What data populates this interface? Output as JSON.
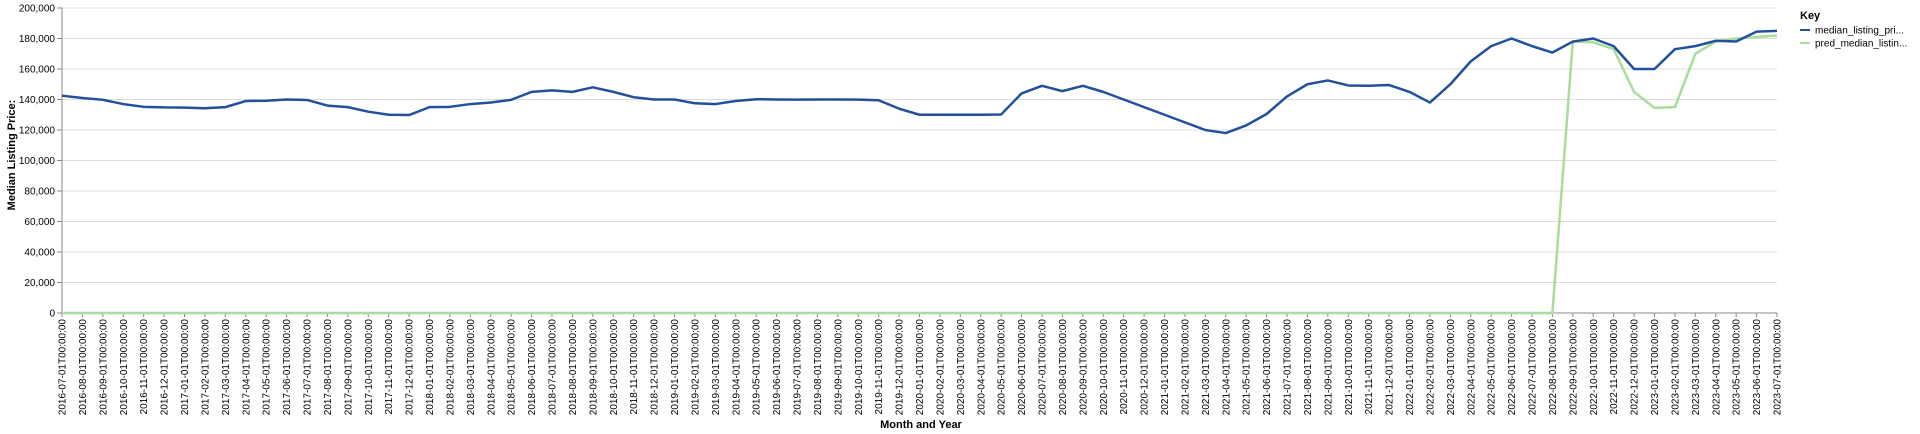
{
  "chart_data": {
    "type": "line",
    "xlabel": "Month and Year",
    "ylabel": "Median Listing Price:",
    "ylim": [
      0,
      200000
    ],
    "y_ticks": [
      "0",
      "20,000",
      "40,000",
      "60,000",
      "80,000",
      "100,000",
      "120,000",
      "140,000",
      "160,000",
      "180,000",
      "200,000"
    ],
    "y_tick_values": [
      0,
      20000,
      40000,
      60000,
      80000,
      100000,
      120000,
      140000,
      160000,
      180000,
      200000
    ],
    "grid": true,
    "legend": {
      "title": "Key",
      "placement": "right"
    },
    "x": [
      "2016-07-01T00:00:00",
      "2016-08-01T00:00:00",
      "2016-09-01T00:00:00",
      "2016-10-01T00:00:00",
      "2016-11-01T00:00:00",
      "2016-12-01T00:00:00",
      "2017-01-01T00:00:00",
      "2017-02-01T00:00:00",
      "2017-03-01T00:00:00",
      "2017-04-01T00:00:00",
      "2017-05-01T00:00:00",
      "2017-06-01T00:00:00",
      "2017-07-01T00:00:00",
      "2017-08-01T00:00:00",
      "2017-09-01T00:00:00",
      "2017-10-01T00:00:00",
      "2017-11-01T00:00:00",
      "2017-12-01T00:00:00",
      "2018-01-01T00:00:00",
      "2018-02-01T00:00:00",
      "2018-03-01T00:00:00",
      "2018-04-01T00:00:00",
      "2018-05-01T00:00:00",
      "2018-06-01T00:00:00",
      "2018-07-01T00:00:00",
      "2018-08-01T00:00:00",
      "2018-09-01T00:00:00",
      "2018-10-01T00:00:00",
      "2018-11-01T00:00:00",
      "2018-12-01T00:00:00",
      "2019-01-01T00:00:00",
      "2019-02-01T00:00:00",
      "2019-03-01T00:00:00",
      "2019-04-01T00:00:00",
      "2019-05-01T00:00:00",
      "2019-06-01T00:00:00",
      "2019-07-01T00:00:00",
      "2019-08-01T00:00:00",
      "2019-09-01T00:00:00",
      "2019-10-01T00:00:00",
      "2019-11-01T00:00:00",
      "2019-12-01T00:00:00",
      "2020-01-01T00:00:00",
      "2020-02-01T00:00:00",
      "2020-03-01T00:00:00",
      "2020-04-01T00:00:00",
      "2020-05-01T00:00:00",
      "2020-06-01T00:00:00",
      "2020-07-01T00:00:00",
      "2020-08-01T00:00:00",
      "2020-09-01T00:00:00",
      "2020-10-01T00:00:00",
      "2020-11-01T00:00:00",
      "2020-12-01T00:00:00",
      "2021-01-01T00:00:00",
      "2021-02-01T00:00:00",
      "2021-03-01T00:00:00",
      "2021-04-01T00:00:00",
      "2021-05-01T00:00:00",
      "2021-06-01T00:00:00",
      "2021-07-01T00:00:00",
      "2021-08-01T00:00:00",
      "2021-09-01T00:00:00",
      "2021-10-01T00:00:00",
      "2021-11-01T00:00:00",
      "2021-12-01T00:00:00",
      "2022-01-01T00:00:00",
      "2022-02-01T00:00:00",
      "2022-03-01T00:00:00",
      "2022-04-01T00:00:00",
      "2022-05-01T00:00:00",
      "2022-06-01T00:00:00",
      "2022-07-01T00:00:00",
      "2022-08-01T00:00:00",
      "2022-09-01T00:00:00",
      "2022-10-01T00:00:00",
      "2022-11-01T00:00:00",
      "2022-12-01T00:00:00",
      "2023-01-01T00:00:00",
      "2023-02-01T00:00:00",
      "2023-03-01T00:00:00",
      "2023-04-01T00:00:00",
      "2023-05-01T00:00:00",
      "2023-06-01T00:00:00",
      "2023-07-01T00:00:00"
    ],
    "series": [
      {
        "name": "median_listing_pri...",
        "color": "#23509b",
        "values": [
          142500,
          141000,
          139800,
          137000,
          135200,
          134800,
          134700,
          134300,
          135000,
          139000,
          139200,
          140000,
          139700,
          136000,
          135000,
          132000,
          130000,
          129800,
          135000,
          135200,
          137000,
          138000,
          139800,
          145000,
          146000,
          145000,
          148000,
          145000,
          141500,
          140000,
          140000,
          137500,
          137000,
          139000,
          140200,
          140000,
          139900,
          140000,
          140000,
          139900,
          139500,
          134000,
          130000,
          130000,
          130000,
          130000,
          130200,
          144000,
          149000,
          145500,
          149000,
          145000,
          140000,
          135000,
          130000,
          125000,
          120000,
          118000,
          123000,
          130500,
          142000,
          150000,
          152500,
          149200,
          149000,
          149500,
          145000,
          138000,
          150000,
          165000,
          175000,
          180000,
          175000,
          170800,
          178000,
          180000,
          175000,
          160000,
          160000,
          173000,
          175000,
          178500,
          178000,
          184500,
          185000
        ]
      },
      {
        "name": "pred_median_listin...",
        "color": "#a8dd9b",
        "values": [
          0,
          0,
          0,
          0,
          0,
          0,
          0,
          0,
          0,
          0,
          0,
          0,
          0,
          0,
          0,
          0,
          0,
          0,
          0,
          0,
          0,
          0,
          0,
          0,
          0,
          0,
          0,
          0,
          0,
          0,
          0,
          0,
          0,
          0,
          0,
          0,
          0,
          0,
          0,
          0,
          0,
          0,
          0,
          0,
          0,
          0,
          0,
          0,
          0,
          0,
          0,
          0,
          0,
          0,
          0,
          0,
          0,
          0,
          0,
          0,
          0,
          0,
          0,
          0,
          0,
          0,
          0,
          0,
          0,
          0,
          0,
          0,
          0,
          0,
          178000,
          177500,
          173000,
          145000,
          134500,
          135000,
          170000,
          178000,
          180000,
          181000,
          182000
        ]
      }
    ]
  }
}
